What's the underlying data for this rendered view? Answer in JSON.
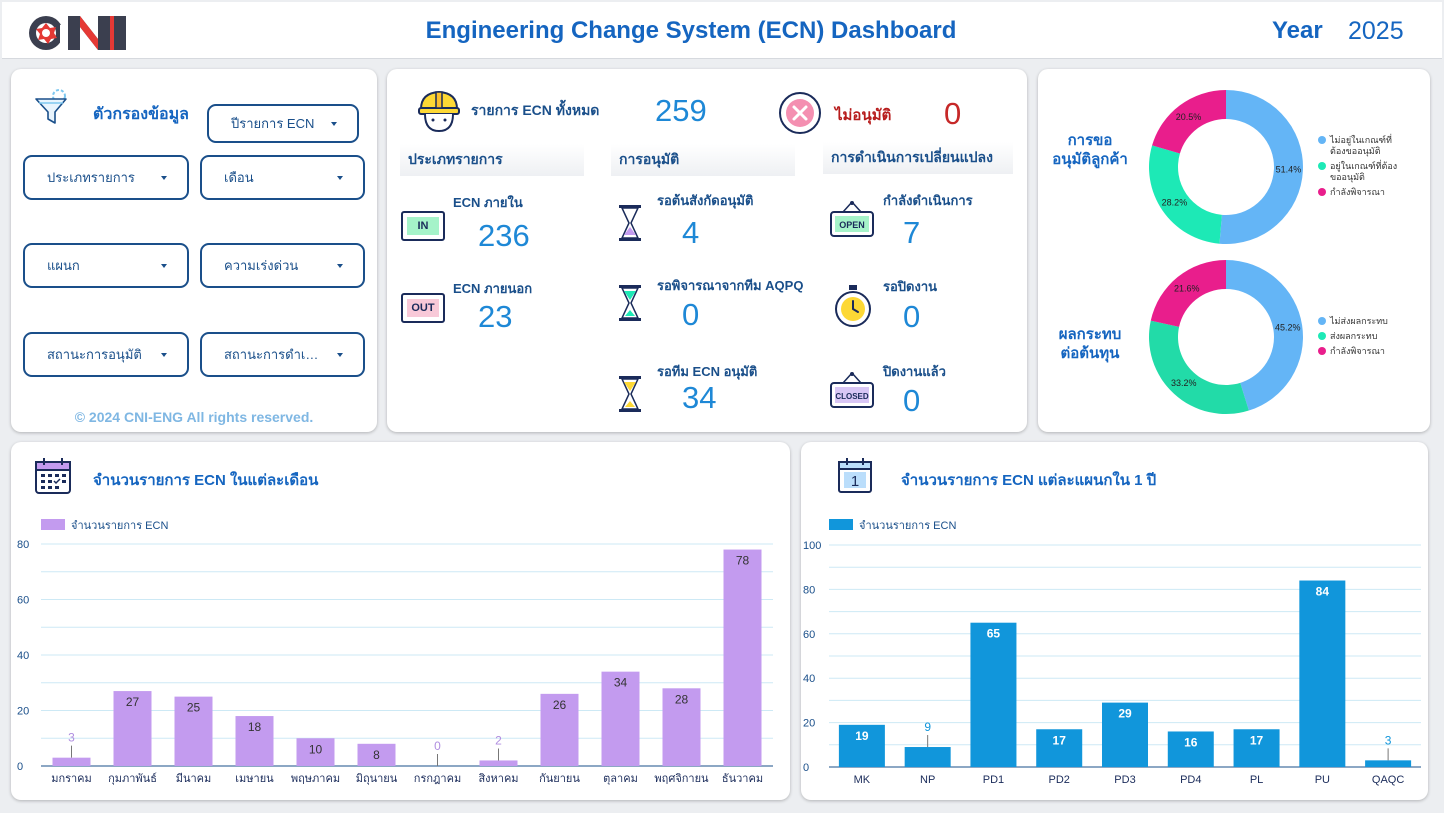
{
  "header": {
    "logo_text": "CNI",
    "title": "Engineering Change System (ECN) Dashboard",
    "year_label": "Year",
    "year_value": "2025"
  },
  "filters": {
    "title": "ตัวกรองข้อมูล",
    "dropdowns": {
      "ecn_list": "ปีรายการ ECN",
      "item_type": "ประเภทรายการ",
      "month": "เดือน",
      "department": "แผนก",
      "urgency": "ความเร่งด่วน",
      "approval_status": "สถานะการอนุมัติ",
      "process_status": "สถานะการดำเนิน..."
    },
    "copyright": "© 2024 CNI-ENG All rights reserved."
  },
  "summary": {
    "total_label": "รายการ ECN ทั้งหมด",
    "total_value": "259",
    "rejected_label": "ไม่อนุมัติ",
    "rejected_value": "0",
    "type_section": "ประเภทรายการ",
    "approval_section": "การอนุมัติ",
    "process_section": "การดำเนินการเปลี่ยนแปลง",
    "internal_label": "ECN ภายใน",
    "internal_value": "236",
    "internal_badge": "IN",
    "external_label": "ECN ภายนอก",
    "external_value": "23",
    "external_badge": "OUT",
    "wait_dept_label": "รอต้นสังกัดอนุมัติ",
    "wait_dept_value": "4",
    "wait_aqpq_label": "รอพิจารณาจากทีม AQPQ",
    "wait_aqpq_value": "0",
    "wait_ecn_label": "รอทีม ECN อนุมัติ",
    "wait_ecn_value": "34",
    "in_progress_label": "กำลังดำเนินการ",
    "in_progress_value": "7",
    "wait_close_label": "รอปิดงาน",
    "wait_close_value": "0",
    "closed_label": "ปิดงานแล้ว",
    "closed_value": "0",
    "open_sign": "OPEN",
    "closed_sign": "CLOSED"
  },
  "donuts": {
    "customer_title_1": "การขอ",
    "customer_title_2": "อนุมัติลูกค้า",
    "customer_legend_1a": "ไม่อยู่ในเกณฑ์ที่",
    "customer_legend_1b": "ต้องขออนุมัติ",
    "customer_legend_2a": "อยู่ในเกณฑ์ที่ต้อง",
    "customer_legend_2b": "ขออนุมัติ",
    "customer_legend_3": "กำลังพิจารณา",
    "cost_title_1": "ผลกระทบ",
    "cost_title_2": "ต่อต้นทุน",
    "cost_legend_1": "ไม่ส่งผลกระทบ",
    "cost_legend_2": "ส่งผลกระทบ",
    "cost_legend_3": "กำลังพิจารณา"
  },
  "colors": {
    "blue_light": "#64b5f6",
    "green": "#1de9b6",
    "magenta": "#e91e8c",
    "purple_bar": "#c39bef",
    "blue_bar": "#1196db",
    "title_blue": "#1565c0"
  },
  "chart_data": [
    {
      "type": "pie",
      "title": "การขออนุมัติลูกค้า",
      "categories": [
        "ไม่อยู่ในเกณฑ์ที่ต้องขออนุมัติ",
        "อยู่ในเกณฑ์ที่ต้องขออนุมัติ",
        "กำลังพิจารณา"
      ],
      "values": [
        51.4,
        28.2,
        20.5
      ],
      "labels": [
        "51.4%",
        "28.2%",
        "20.5%"
      ]
    },
    {
      "type": "pie",
      "title": "ผลกระทบต่อต้นทุน",
      "categories": [
        "ไม่ส่งผลกระทบ",
        "ส่งผลกระทบ",
        "กำลังพิจารณา"
      ],
      "values": [
        45.2,
        33.2,
        21.6
      ],
      "labels": [
        "45.2%",
        "33.2%",
        "21.6%"
      ]
    },
    {
      "type": "bar",
      "title": "จำนวนรายการ ECN ในแต่ละเดือน",
      "legend": "จำนวนรายการ ECN",
      "categories": [
        "มกราคม",
        "กุมภาพันธ์",
        "มีนาคม",
        "เมษายน",
        "พฤษภาคม",
        "มิถุนายน",
        "กรกฎาคม",
        "สิงหาคม",
        "กันยายน",
        "ตุลาคม",
        "พฤศจิกายน",
        "ธันวาคม"
      ],
      "values": [
        3,
        27,
        25,
        18,
        10,
        8,
        0,
        2,
        26,
        34,
        28,
        78
      ],
      "ylim": [
        0,
        80
      ],
      "yticks": [
        0,
        20,
        40,
        60,
        80
      ],
      "grid": true
    },
    {
      "type": "bar",
      "title": "จำนวนรายการ ECN แต่ละแผนกใน 1 ปี",
      "legend": "จำนวนรายการ ECN",
      "categories": [
        "MK",
        "NP",
        "PD1",
        "PD2",
        "PD3",
        "PD4",
        "PL",
        "PU",
        "QAQC"
      ],
      "values": [
        19,
        9,
        65,
        17,
        29,
        16,
        17,
        84,
        3
      ],
      "ylim": [
        0,
        100
      ],
      "yticks": [
        0,
        20,
        40,
        60,
        80,
        100
      ],
      "grid": true
    }
  ]
}
